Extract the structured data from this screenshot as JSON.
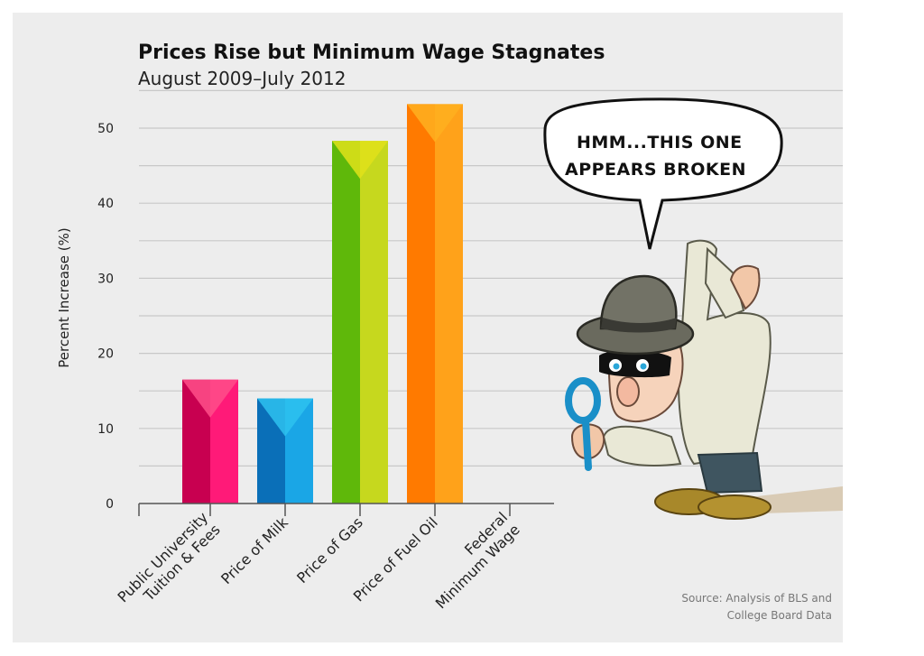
{
  "chart_data": {
    "type": "bar",
    "title": "Prices Rise but Minimum Wage Stagnates",
    "subtitle": "August 2009–July 2012",
    "ylabel": "Percent Increase (%)",
    "xlabel": "",
    "ylim": [
      0,
      50
    ],
    "yticks": [
      "0",
      "10",
      "20",
      "30",
      "40",
      "50"
    ],
    "grid": true,
    "categories": [
      {
        "lines": [
          "Public University",
          "Tuition & Fees"
        ]
      },
      {
        "lines": [
          "Price of Milk"
        ]
      },
      {
        "lines": [
          "Price of Gas"
        ]
      },
      {
        "lines": [
          "Price of Fuel Oil"
        ]
      },
      {
        "lines": [
          "Federal",
          "Minimum Wage"
        ]
      }
    ],
    "values": [
      16.5,
      14,
      48.3,
      53.2,
      0
    ],
    "colors": [
      [
        "#c80050",
        "#ff1a78",
        "#ff4f8a"
      ],
      [
        "#0a6fb8",
        "#1aa6e6",
        "#2ec2ef"
      ],
      [
        "#5fb80a",
        "#c6d81e",
        "#e0e21a"
      ],
      [
        "#ff7a00",
        "#ffa21a",
        "#ffb020"
      ],
      [
        "#888888",
        "#aaaaaa",
        "#cccccc"
      ]
    ],
    "source": [
      "Source:  Analysis of BLS and",
      "College Board Data"
    ]
  },
  "illustration": {
    "speech_bubble": [
      "HMM...THIS ONE",
      "APPEARS BROKEN"
    ]
  }
}
